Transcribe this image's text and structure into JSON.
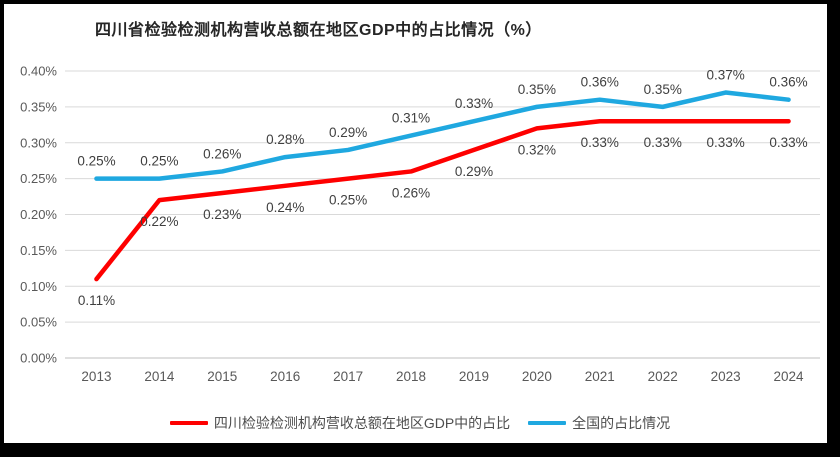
{
  "title": "四川省检验检测机构营收总额在地区GDP中的占比情况（%）",
  "colors": {
    "background": "#FFFFFF",
    "frame": "#000000",
    "grid": "#D9D9D9",
    "axis_line": "#BFBFBF",
    "axis_text": "#595959",
    "data_label_text": "#3F3F3F",
    "title_text": "#262626",
    "sichuan_line": "#FE0000",
    "national_line": "#1FA8E0"
  },
  "chart_data": {
    "type": "line",
    "title": "四川省检验检测机构营收总额在地区GDP中的占比情况（%）",
    "categories": [
      "2013",
      "2014",
      "2015",
      "2016",
      "2017",
      "2018",
      "2019",
      "2020",
      "2021",
      "2022",
      "2023",
      "2024"
    ],
    "series": [
      {
        "name": "四川检验检测机构营收总额在地区GDP中的占比",
        "color": "#FE0000",
        "values": [
          0.11,
          0.22,
          0.23,
          0.24,
          0.25,
          0.26,
          0.29,
          0.32,
          0.33,
          0.33,
          0.33,
          0.33
        ],
        "labels": [
          "0.11%",
          "0.22%",
          "0.23%",
          "0.24%",
          "0.25%",
          "0.26%",
          "0.29%",
          "0.32%",
          "0.33%",
          "0.33%",
          "0.33%",
          "0.33%"
        ],
        "label_position": "below"
      },
      {
        "name": "全国的占比情况",
        "color": "#1FA8E0",
        "values": [
          0.25,
          0.25,
          0.26,
          0.28,
          0.29,
          0.31,
          0.33,
          0.35,
          0.36,
          0.35,
          0.37,
          0.36
        ],
        "labels": [
          "0.25%",
          "0.25%",
          "0.26%",
          "0.28%",
          "0.29%",
          "0.31%",
          "0.33%",
          "0.35%",
          "0.36%",
          "0.35%",
          "0.37%",
          "0.36%"
        ],
        "label_position": "above"
      }
    ],
    "xlabel": "",
    "ylabel": "",
    "ylim": [
      0.0,
      0.4
    ],
    "y_unit": "%",
    "y_ticks": [
      "0.40%",
      "0.35%",
      "0.30%",
      "0.25%",
      "0.20%",
      "0.15%",
      "0.10%",
      "0.05%",
      "0.00%"
    ],
    "grid": true,
    "legend_position": "bottom"
  }
}
